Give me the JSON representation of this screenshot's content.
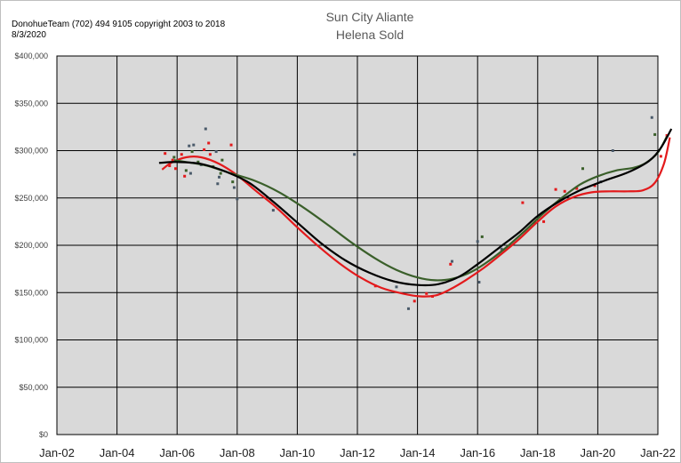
{
  "header": {
    "copyright": "DonohueTeam (702) 494 9105 copyright 2003 to 2018",
    "date": "8/3/2020"
  },
  "chart_data": {
    "type": "scatter",
    "title": "Sun City Aliante",
    "subtitle": "Helena Sold",
    "xlabel": "",
    "ylabel": "",
    "xlim": [
      2002,
      2022
    ],
    "ylim": [
      0,
      400000
    ],
    "grid": true,
    "x_tick_labels": [
      "Jan-02",
      "Jan-04",
      "Jan-06",
      "Jan-08",
      "Jan-10",
      "Jan-12",
      "Jan-14",
      "Jan-16",
      "Jan-18",
      "Jan-20",
      "Jan-22"
    ],
    "x_ticks": [
      2002,
      2004,
      2006,
      2008,
      2010,
      2012,
      2014,
      2016,
      2018,
      2020,
      2022
    ],
    "y_tick_labels": [
      "$0",
      "$50,000",
      "$100,000",
      "$150,000",
      "$200,000",
      "$250,000",
      "$300,000",
      "$350,000",
      "$400,000"
    ],
    "y_ticks": [
      0,
      50000,
      100000,
      150000,
      200000,
      250000,
      300000,
      350000,
      400000
    ],
    "colors": {
      "red": "#e31a1c",
      "green": "#3a5f2a",
      "black": "#000000",
      "slate": "#4a5a6a"
    },
    "scatter": [
      {
        "x": 2005.6,
        "y": 297000,
        "color": "red"
      },
      {
        "x": 2005.75,
        "y": 284000,
        "color": "red"
      },
      {
        "x": 2005.85,
        "y": 290000,
        "color": "red"
      },
      {
        "x": 2005.95,
        "y": 281000,
        "color": "red"
      },
      {
        "x": 2005.9,
        "y": 293000,
        "color": "green"
      },
      {
        "x": 2006.15,
        "y": 296000,
        "color": "red"
      },
      {
        "x": 2006.25,
        "y": 273000,
        "color": "red"
      },
      {
        "x": 2006.3,
        "y": 279000,
        "color": "green"
      },
      {
        "x": 2006.4,
        "y": 305000,
        "color": "slate"
      },
      {
        "x": 2006.45,
        "y": 276000,
        "color": "slate"
      },
      {
        "x": 2006.5,
        "y": 299000,
        "color": "green"
      },
      {
        "x": 2006.55,
        "y": 306000,
        "color": "slate"
      },
      {
        "x": 2006.7,
        "y": 288000,
        "color": "green"
      },
      {
        "x": 2006.8,
        "y": 285000,
        "color": "slate"
      },
      {
        "x": 2006.9,
        "y": 301000,
        "color": "red"
      },
      {
        "x": 2006.95,
        "y": 323000,
        "color": "slate"
      },
      {
        "x": 2007.05,
        "y": 308000,
        "color": "red"
      },
      {
        "x": 2007.1,
        "y": 296000,
        "color": "red"
      },
      {
        "x": 2007.2,
        "y": 283000,
        "color": "green"
      },
      {
        "x": 2007.3,
        "y": 299000,
        "color": "slate"
      },
      {
        "x": 2007.35,
        "y": 265000,
        "color": "slate"
      },
      {
        "x": 2007.4,
        "y": 272000,
        "color": "slate"
      },
      {
        "x": 2007.45,
        "y": 276000,
        "color": "green"
      },
      {
        "x": 2007.5,
        "y": 290000,
        "color": "green"
      },
      {
        "x": 2007.8,
        "y": 306000,
        "color": "red"
      },
      {
        "x": 2007.85,
        "y": 267000,
        "color": "green"
      },
      {
        "x": 2007.9,
        "y": 261000,
        "color": "slate"
      },
      {
        "x": 2008.0,
        "y": 249000,
        "color": "slate"
      },
      {
        "x": 2009.2,
        "y": 237000,
        "color": "slate"
      },
      {
        "x": 2011.9,
        "y": 296000,
        "color": "slate"
      },
      {
        "x": 2012.6,
        "y": 157000,
        "color": "red"
      },
      {
        "x": 2013.3,
        "y": 156000,
        "color": "slate"
      },
      {
        "x": 2013.7,
        "y": 133000,
        "color": "slate"
      },
      {
        "x": 2013.9,
        "y": 141000,
        "color": "red"
      },
      {
        "x": 2014.3,
        "y": 149000,
        "color": "red"
      },
      {
        "x": 2014.5,
        "y": 146000,
        "color": "red"
      },
      {
        "x": 2015.1,
        "y": 180000,
        "color": "red"
      },
      {
        "x": 2015.15,
        "y": 183000,
        "color": "slate"
      },
      {
        "x": 2016.0,
        "y": 204000,
        "color": "slate"
      },
      {
        "x": 2016.05,
        "y": 161000,
        "color": "slate"
      },
      {
        "x": 2016.15,
        "y": 209000,
        "color": "green"
      },
      {
        "x": 2016.8,
        "y": 196000,
        "color": "slate"
      },
      {
        "x": 2017.5,
        "y": 245000,
        "color": "red"
      },
      {
        "x": 2017.9,
        "y": 224000,
        "color": "red"
      },
      {
        "x": 2018.2,
        "y": 225000,
        "color": "red"
      },
      {
        "x": 2018.6,
        "y": 259000,
        "color": "red"
      },
      {
        "x": 2018.9,
        "y": 257000,
        "color": "red"
      },
      {
        "x": 2019.3,
        "y": 260000,
        "color": "red"
      },
      {
        "x": 2019.5,
        "y": 281000,
        "color": "green"
      },
      {
        "x": 2019.9,
        "y": 263000,
        "color": "red"
      },
      {
        "x": 2020.1,
        "y": 267000,
        "color": "slate"
      },
      {
        "x": 2020.5,
        "y": 300000,
        "color": "slate"
      },
      {
        "x": 2021.8,
        "y": 335000,
        "color": "slate"
      },
      {
        "x": 2021.9,
        "y": 317000,
        "color": "green"
      },
      {
        "x": 2022.1,
        "y": 294000,
        "color": "red"
      },
      {
        "x": 2022.3,
        "y": 316000,
        "color": "red"
      }
    ],
    "series": [
      {
        "color": "red",
        "points": [
          [
            2005.5,
            280000
          ],
          [
            2005.8,
            287000
          ],
          [
            2006.3,
            293000
          ],
          [
            2006.8,
            293000
          ],
          [
            2007.4,
            286000
          ],
          [
            2008.0,
            274000
          ],
          [
            2008.6,
            258000
          ],
          [
            2009.3,
            240000
          ],
          [
            2010.0,
            219000
          ],
          [
            2010.7,
            199000
          ],
          [
            2011.4,
            181000
          ],
          [
            2012.1,
            166000
          ],
          [
            2012.8,
            155000
          ],
          [
            2013.5,
            149000
          ],
          [
            2014.1,
            146000
          ],
          [
            2014.6,
            147000
          ],
          [
            2015.0,
            152000
          ],
          [
            2015.6,
            163000
          ],
          [
            2016.2,
            176000
          ],
          [
            2016.8,
            191000
          ],
          [
            2017.4,
            207000
          ],
          [
            2018.0,
            225000
          ],
          [
            2018.6,
            241000
          ],
          [
            2019.2,
            251000
          ],
          [
            2019.8,
            256000
          ],
          [
            2020.4,
            257000
          ],
          [
            2021.0,
            257000
          ],
          [
            2021.5,
            258000
          ],
          [
            2021.9,
            266000
          ],
          [
            2022.2,
            286000
          ],
          [
            2022.4,
            314000
          ]
        ]
      },
      {
        "color": "green",
        "points": [
          [
            2005.9,
            290000
          ],
          [
            2006.3,
            288000
          ],
          [
            2007.0,
            284000
          ],
          [
            2007.8,
            276000
          ],
          [
            2008.6,
            268000
          ],
          [
            2009.4,
            256000
          ],
          [
            2010.2,
            240000
          ],
          [
            2011.0,
            222000
          ],
          [
            2011.8,
            203000
          ],
          [
            2012.6,
            186000
          ],
          [
            2013.3,
            174000
          ],
          [
            2014.0,
            166000
          ],
          [
            2014.6,
            163000
          ],
          [
            2015.2,
            165000
          ],
          [
            2015.8,
            172000
          ],
          [
            2016.4,
            184000
          ],
          [
            2017.0,
            199000
          ],
          [
            2017.6,
            216000
          ],
          [
            2018.2,
            234000
          ],
          [
            2018.8,
            250000
          ],
          [
            2019.4,
            264000
          ],
          [
            2020.0,
            273000
          ],
          [
            2020.6,
            279000
          ],
          [
            2021.2,
            282000
          ],
          [
            2021.6,
            287000
          ],
          [
            2022.0,
            298000
          ],
          [
            2022.3,
            315000
          ]
        ]
      },
      {
        "color": "black",
        "points": [
          [
            2005.4,
            287000
          ],
          [
            2006.0,
            288000
          ],
          [
            2006.8,
            286000
          ],
          [
            2007.6,
            278000
          ],
          [
            2008.4,
            266000
          ],
          [
            2009.2,
            246000
          ],
          [
            2010.0,
            224000
          ],
          [
            2010.8,
            202000
          ],
          [
            2011.6,
            184000
          ],
          [
            2012.4,
            171000
          ],
          [
            2013.2,
            162000
          ],
          [
            2014.0,
            158000
          ],
          [
            2014.7,
            159000
          ],
          [
            2015.4,
            167000
          ],
          [
            2016.0,
            180000
          ],
          [
            2016.7,
            197000
          ],
          [
            2017.4,
            214000
          ],
          [
            2018.0,
            231000
          ],
          [
            2018.7,
            246000
          ],
          [
            2019.4,
            258000
          ],
          [
            2020.2,
            268000
          ],
          [
            2021.0,
            277000
          ],
          [
            2021.7,
            289000
          ],
          [
            2022.1,
            303000
          ],
          [
            2022.45,
            323000
          ]
        ]
      }
    ]
  }
}
